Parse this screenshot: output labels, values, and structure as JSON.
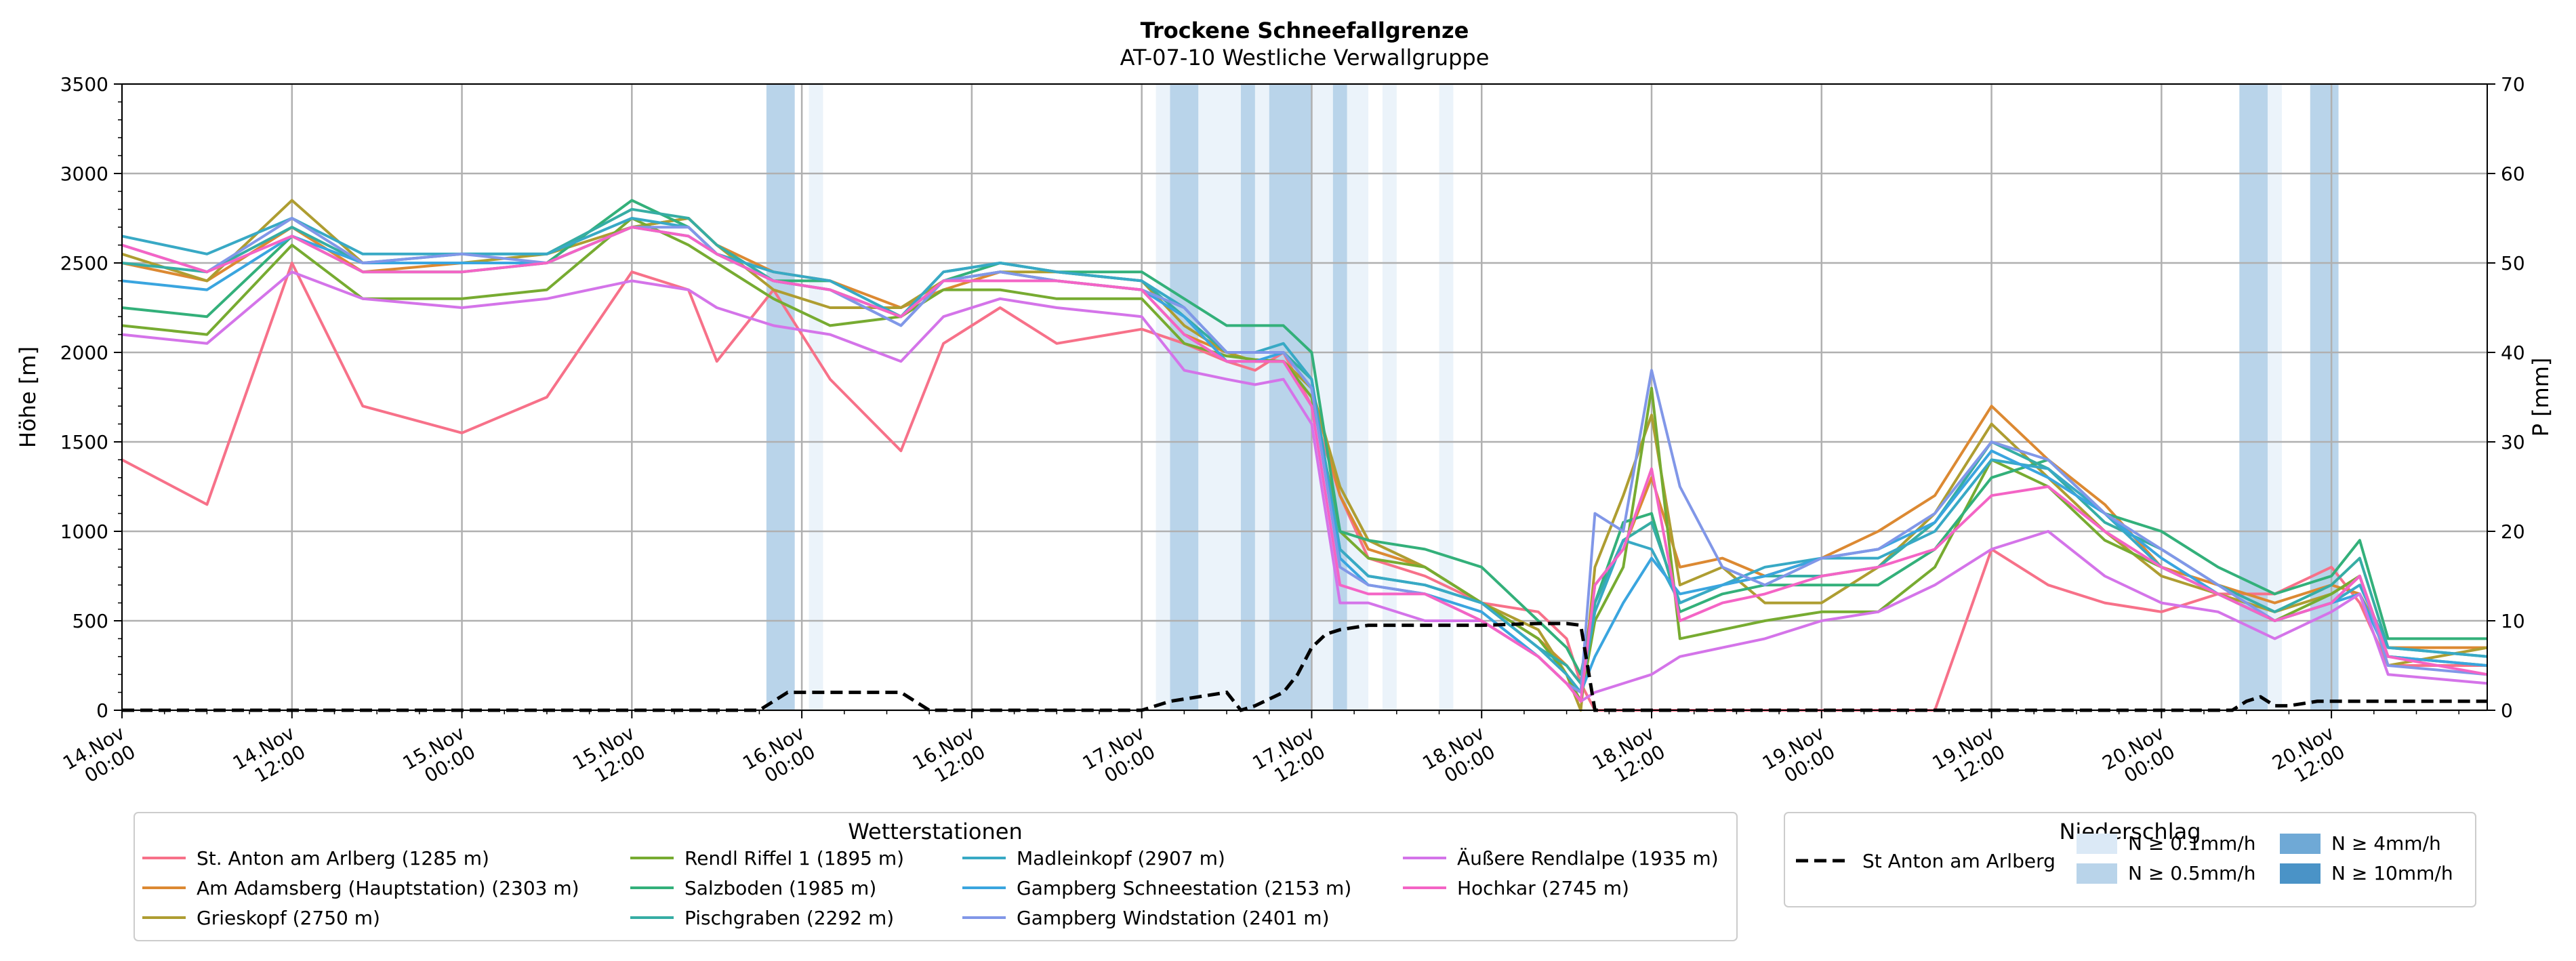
{
  "chart_data": {
    "type": "line",
    "title": "Trockene Schneefallgrenze",
    "subtitle": "AT-07-10 Westliche Verwallgruppe",
    "ylabel": "Höhe [m]",
    "ylabel_right": "P [mm]",
    "ylim": [
      0,
      3500
    ],
    "ylim_right": [
      0,
      70
    ],
    "y_ticks": [
      "0",
      "500",
      "1000",
      "1500",
      "2000",
      "2500",
      "3000",
      "3500"
    ],
    "y_ticks_right": [
      "0",
      "10",
      "20",
      "30",
      "40",
      "50",
      "60",
      "70"
    ],
    "x_unit": "hours since 14.Nov 00:00",
    "xlim": [
      0,
      167
    ],
    "x_ticks": [
      {
        "h": 0,
        "line1": "14.Nov",
        "line2": "00:00"
      },
      {
        "h": 12,
        "line1": "14.Nov",
        "line2": "12:00"
      },
      {
        "h": 24,
        "line1": "15.Nov",
        "line2": "00:00"
      },
      {
        "h": 36,
        "line1": "15.Nov",
        "line2": "12:00"
      },
      {
        "h": 48,
        "line1": "16.Nov",
        "line2": "00:00"
      },
      {
        "h": 60,
        "line1": "16.Nov",
        "line2": "12:00"
      },
      {
        "h": 72,
        "line1": "17.Nov",
        "line2": "00:00"
      },
      {
        "h": 84,
        "line1": "17.Nov",
        "line2": "12:00"
      },
      {
        "h": 96,
        "line1": "18.Nov",
        "line2": "00:00"
      },
      {
        "h": 108,
        "line1": "18.Nov",
        "line2": "12:00"
      },
      {
        "h": 120,
        "line1": "19.Nov",
        "line2": "00:00"
      },
      {
        "h": 132,
        "line1": "19.Nov",
        "line2": "12:00"
      },
      {
        "h": 144,
        "line1": "20.Nov",
        "line2": "00:00"
      },
      {
        "h": 156,
        "line1": "20.Nov",
        "line2": "12:00"
      }
    ],
    "precip_bands": [
      {
        "start": 45.5,
        "end": 47.5,
        "level": 2
      },
      {
        "start": 48.5,
        "end": 49.5,
        "level": 1
      },
      {
        "start": 73.0,
        "end": 74.0,
        "level": 1
      },
      {
        "start": 74.0,
        "end": 76.0,
        "level": 2
      },
      {
        "start": 76.0,
        "end": 79.0,
        "level": 1
      },
      {
        "start": 79.0,
        "end": 80.0,
        "level": 2
      },
      {
        "start": 80.0,
        "end": 81.0,
        "level": 1
      },
      {
        "start": 81.0,
        "end": 84.0,
        "level": 2
      },
      {
        "start": 84.0,
        "end": 85.5,
        "level": 1
      },
      {
        "start": 85.5,
        "end": 86.5,
        "level": 2
      },
      {
        "start": 86.5,
        "end": 88.0,
        "level": 1
      },
      {
        "start": 89.0,
        "end": 90.0,
        "level": 1
      },
      {
        "start": 93.0,
        "end": 94.0,
        "level": 1
      },
      {
        "start": 149.5,
        "end": 151.5,
        "level": 2
      },
      {
        "start": 151.5,
        "end": 152.5,
        "level": 1
      },
      {
        "start": 154.5,
        "end": 156.5,
        "level": 2
      }
    ],
    "precip_series": {
      "name": "St Anton am Arlberg",
      "x": [
        0,
        45,
        46,
        47,
        48,
        50,
        52,
        55,
        56,
        57,
        58,
        72,
        74,
        76,
        78,
        79,
        80,
        82,
        83,
        84,
        85,
        86,
        88,
        92,
        96,
        100,
        102,
        103,
        104,
        105,
        106,
        107,
        140,
        148,
        149,
        150,
        151,
        152,
        153,
        155,
        157,
        158,
        160,
        167
      ],
      "y": [
        0,
        0,
        1,
        2,
        2,
        2,
        2,
        2,
        1,
        0,
        0,
        0,
        1,
        1.5,
        2,
        0,
        0.5,
        2,
        4,
        7,
        8.5,
        9,
        9.5,
        9.5,
        9.5,
        9.7,
        9.7,
        9.5,
        0,
        0,
        0,
        0,
        0,
        0,
        0,
        1,
        1.5,
        0.5,
        0.5,
        1,
        1,
        1,
        1,
        1
      ]
    },
    "legend_stations_title": "Wetterstationen",
    "legend_precip_title": "Niederschlag",
    "precip_legend": {
      "line_label": "St Anton am Arlberg",
      "levels": [
        "N ≥ 0.1mm/h",
        "N ≥ 0.5mm/h",
        "N ≥ 4mm/h",
        "N ≥ 10mm/h"
      ],
      "colors": [
        "#dbe9f6",
        "#b9d4ea",
        "#6fa9d6",
        "#4a93c7"
      ]
    },
    "anchor_x": [
      0,
      6,
      12,
      17,
      24,
      30,
      36,
      40,
      42,
      46,
      50,
      55,
      58,
      62,
      66,
      72,
      75,
      78,
      80,
      82,
      84,
      86,
      88,
      92,
      96,
      100,
      102,
      103,
      104,
      106,
      108,
      110,
      113,
      116,
      120,
      124,
      128,
      132,
      136,
      140,
      144,
      148,
      152,
      156,
      158,
      160,
      167
    ],
    "series": [
      {
        "name": "St. Anton am Arlberg (1285 m)",
        "color": "#f77189",
        "y": [
          1400,
          1150,
          2500,
          1700,
          1550,
          1750,
          2450,
          2350,
          1950,
          2350,
          1850,
          1450,
          2050,
          2250,
          2050,
          2130,
          2050,
          1950,
          1900,
          2000,
          1700,
          1200,
          850,
          750,
          600,
          550,
          400,
          150,
          0,
          0,
          0,
          0,
          0,
          0,
          0,
          0,
          0,
          900,
          700,
          600,
          550,
          650,
          650,
          800,
          600,
          250,
          250
        ]
      },
      {
        "name": "Am Adamsberg (Hauptstation) (2303 m)",
        "color": "#dc8932",
        "y": [
          2500,
          2400,
          2700,
          2450,
          2500,
          2500,
          2700,
          2750,
          2600,
          2450,
          2400,
          2250,
          2350,
          2450,
          2400,
          2350,
          2100,
          2000,
          1950,
          1950,
          1800,
          1200,
          900,
          800,
          600,
          400,
          250,
          150,
          700,
          900,
          1300,
          800,
          850,
          750,
          850,
          1000,
          1200,
          1700,
          1400,
          1150,
          800,
          700,
          600,
          700,
          650,
          350,
          350
        ]
      },
      {
        "name": "Grieskopf (2750 m)",
        "color": "#ae9d31",
        "y": [
          2550,
          2400,
          2850,
          2500,
          2500,
          2550,
          2700,
          2750,
          2600,
          2350,
          2250,
          2250,
          2400,
          2450,
          2450,
          2400,
          2150,
          2000,
          1950,
          1950,
          1800,
          1250,
          950,
          800,
          600,
          450,
          200,
          0,
          800,
          1200,
          1650,
          700,
          800,
          600,
          600,
          800,
          1100,
          1600,
          1300,
          1000,
          750,
          650,
          550,
          650,
          750,
          250,
          350
        ]
      },
      {
        "name": "Rendl Riffel 1 (1895 m)",
        "color": "#77ab31",
        "y": [
          2150,
          2100,
          2600,
          2300,
          2300,
          2350,
          2750,
          2600,
          2500,
          2300,
          2150,
          2200,
          2350,
          2350,
          2300,
          2300,
          2050,
          1980,
          1960,
          1950,
          1750,
          1000,
          850,
          800,
          600,
          400,
          200,
          50,
          500,
          800,
          1800,
          400,
          450,
          500,
          550,
          550,
          800,
          1400,
          1250,
          950,
          800,
          650,
          500,
          650,
          750,
          300,
          250
        ]
      },
      {
        "name": "Salzboden (1985 m)",
        "color": "#33b07a",
        "y": [
          2250,
          2200,
          2650,
          2450,
          2450,
          2500,
          2850,
          2700,
          2550,
          2400,
          2400,
          2200,
          2400,
          2500,
          2450,
          2450,
          2300,
          2150,
          2150,
          2150,
          2000,
          1000,
          950,
          900,
          800,
          500,
          350,
          200,
          600,
          1050,
          1100,
          550,
          650,
          700,
          700,
          700,
          900,
          1300,
          1400,
          1100,
          1000,
          800,
          650,
          750,
          950,
          400,
          400
        ]
      },
      {
        "name": "Pischgraben (2292 m)",
        "color": "#36ada4",
        "y": [
          2500,
          2450,
          2700,
          2500,
          2550,
          2550,
          2800,
          2750,
          2600,
          2400,
          2350,
          2200,
          2450,
          2500,
          2450,
          2400,
          2200,
          2000,
          2000,
          2000,
          1850,
          900,
          750,
          700,
          600,
          350,
          250,
          150,
          600,
          950,
          1050,
          600,
          700,
          750,
          750,
          800,
          1050,
          1500,
          1350,
          1050,
          900,
          700,
          550,
          700,
          850,
          350,
          300
        ]
      },
      {
        "name": "Madleinkopf (2907 m)",
        "color": "#38a9c5",
        "y": [
          2650,
          2550,
          2750,
          2550,
          2550,
          2550,
          2750,
          2700,
          2550,
          2450,
          2400,
          2200,
          2450,
          2500,
          2450,
          2400,
          2250,
          2000,
          2000,
          2050,
          1850,
          900,
          750,
          700,
          600,
          350,
          200,
          100,
          550,
          950,
          900,
          600,
          700,
          800,
          850,
          850,
          1000,
          1400,
          1350,
          1100,
          800,
          650,
          500,
          600,
          700,
          350,
          300
        ]
      },
      {
        "name": "Gampberg Schneestation (2153 m)",
        "color": "#3aa5df",
        "y": [
          2400,
          2350,
          2650,
          2500,
          2500,
          2500,
          2700,
          2650,
          2550,
          2400,
          2350,
          2150,
          2400,
          2450,
          2400,
          2350,
          2200,
          1950,
          1950,
          2000,
          1800,
          850,
          700,
          650,
          550,
          300,
          150,
          100,
          300,
          600,
          850,
          650,
          700,
          750,
          850,
          900,
          1050,
          1450,
          1300,
          1100,
          850,
          650,
          500,
          600,
          650,
          300,
          250
        ]
      },
      {
        "name": "Gampberg Windstation (2401 m)",
        "color": "#8197e8",
        "y": [
          2600,
          2450,
          2750,
          2500,
          2550,
          2500,
          2700,
          2700,
          2550,
          2400,
          2350,
          2150,
          2400,
          2450,
          2400,
          2350,
          2250,
          2000,
          2000,
          2000,
          1800,
          800,
          700,
          650,
          500,
          300,
          150,
          100,
          1100,
          1000,
          1900,
          1250,
          800,
          700,
          850,
          900,
          1100,
          1500,
          1400,
          1100,
          900,
          700,
          500,
          600,
          750,
          250,
          200
        ]
      },
      {
        "name": "Äußere Rendlalpe (1935 m)",
        "color": "#d474e9",
        "y": [
          2100,
          2050,
          2450,
          2300,
          2250,
          2300,
          2400,
          2350,
          2250,
          2150,
          2100,
          1950,
          2200,
          2300,
          2250,
          2200,
          1900,
          1850,
          1820,
          1850,
          1600,
          600,
          600,
          500,
          500,
          300,
          150,
          50,
          100,
          150,
          200,
          300,
          350,
          400,
          500,
          550,
          700,
          900,
          1000,
          750,
          600,
          550,
          400,
          550,
          650,
          200,
          150
        ]
      },
      {
        "name": "Hochkar (2745 m)",
        "color": "#f464c5",
        "y": [
          2600,
          2450,
          2650,
          2450,
          2450,
          2500,
          2700,
          2650,
          2550,
          2400,
          2350,
          2200,
          2400,
          2400,
          2400,
          2350,
          2100,
          1950,
          1950,
          1950,
          1700,
          700,
          650,
          650,
          500,
          300,
          150,
          50,
          700,
          900,
          1350,
          500,
          600,
          650,
          750,
          800,
          900,
          1200,
          1250,
          1000,
          800,
          650,
          500,
          600,
          750,
          300,
          200
        ]
      }
    ]
  }
}
